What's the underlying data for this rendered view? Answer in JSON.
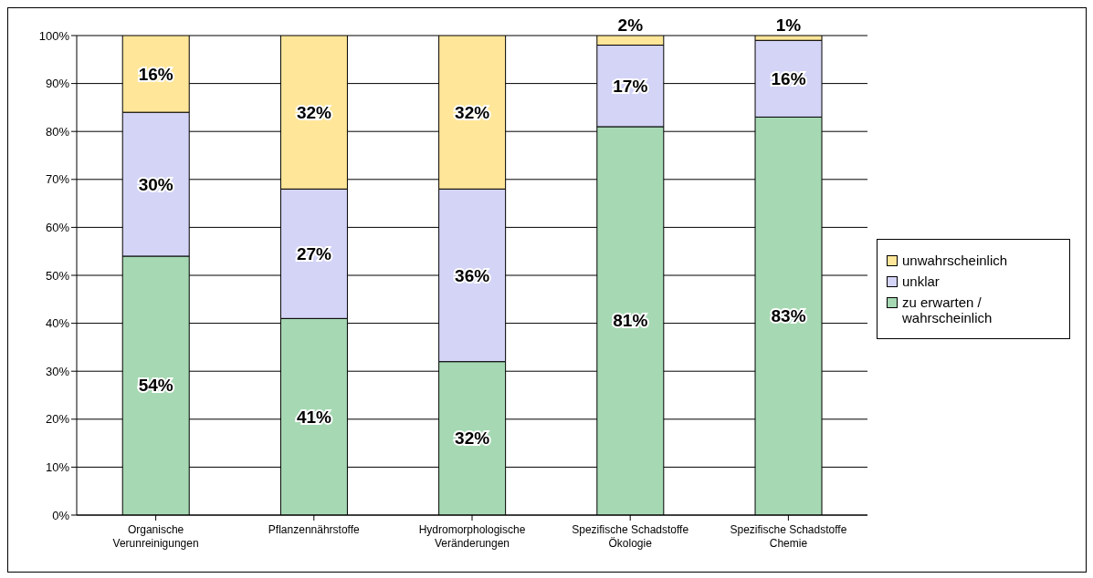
{
  "chart_data": {
    "type": "bar",
    "stacked": true,
    "categories": [
      "Organische Verunreinigungen",
      "Pflanzennährstoffe",
      "Hydromorphologische Veränderungen",
      "Spezifische Schadstoffe Ökologie",
      "Spezifische Schadstoffe Chemie"
    ],
    "series": [
      {
        "name": "zu erwarten / wahrscheinlich",
        "color": "#a6d9b3",
        "values": [
          54,
          41,
          32,
          81,
          83
        ],
        "value_labels": [
          "54%",
          "41%",
          "32%",
          "81%",
          "83%"
        ]
      },
      {
        "name": "unklar",
        "color": "#d4d4f7",
        "values": [
          30,
          27,
          36,
          17,
          16
        ],
        "value_labels": [
          "30%",
          "27%",
          "36%",
          "17%",
          "16%"
        ]
      },
      {
        "name": "unwahrscheinlich",
        "color": "#ffe699",
        "values": [
          16,
          32,
          32,
          2,
          1
        ],
        "value_labels": [
          "16%",
          "32%",
          "32%",
          "2%",
          "1%"
        ]
      }
    ],
    "ylim": [
      0,
      100
    ],
    "yticks": [
      {
        "value": 0,
        "label": "0%"
      },
      {
        "value": 10,
        "label": "10%"
      },
      {
        "value": 20,
        "label": "20%"
      },
      {
        "value": 30,
        "label": "30%"
      },
      {
        "value": 40,
        "label": "40%"
      },
      {
        "value": 50,
        "label": "50%"
      },
      {
        "value": 60,
        "label": "60%"
      },
      {
        "value": 70,
        "label": "70%"
      },
      {
        "value": 80,
        "label": "80%"
      },
      {
        "value": 90,
        "label": "90%"
      },
      {
        "value": 100,
        "label": "100%"
      }
    ],
    "grid": "y",
    "legend": "right"
  }
}
